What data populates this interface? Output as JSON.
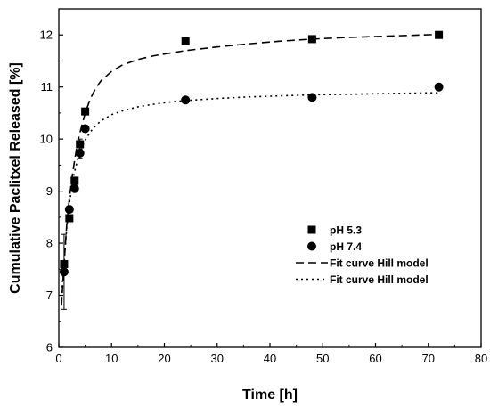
{
  "chart_data": {
    "type": "scatter",
    "title": "",
    "xlabel": "Time [h]",
    "ylabel": "Cumulative Paclitxel Released [%]",
    "xlim": [
      0,
      80
    ],
    "ylim": [
      6,
      12.5
    ],
    "xticks": [
      0,
      10,
      20,
      30,
      40,
      50,
      60,
      70,
      80
    ],
    "yticks": [
      6,
      7,
      8,
      9,
      10,
      11,
      12
    ],
    "grid": false,
    "legend_position": "center-right",
    "series": [
      {
        "name": "pH 5.3",
        "marker": "square",
        "x": [
          1,
          2,
          3,
          4,
          5,
          24,
          48,
          72
        ],
        "y": [
          7.6,
          8.48,
          9.2,
          9.9,
          10.53,
          11.88,
          11.92,
          12.0
        ],
        "error": [
          0,
          0,
          0,
          0.1,
          0,
          0,
          0,
          0
        ]
      },
      {
        "name": "pH 7.4",
        "marker": "circle",
        "x": [
          1,
          2,
          3,
          4,
          5,
          24,
          48,
          72
        ],
        "y": [
          7.45,
          8.65,
          9.05,
          9.73,
          10.2,
          10.75,
          10.8,
          11.0
        ],
        "error": [
          0.72,
          0,
          0,
          0.1,
          0,
          0,
          0,
          0.05
        ]
      }
    ],
    "fits": [
      {
        "name": "Fit curve Hill model",
        "style": "dashed",
        "x": [
          0.5,
          1,
          1.5,
          2,
          2.5,
          3,
          3.5,
          4,
          5,
          6,
          7,
          8,
          10,
          12,
          15,
          18,
          21,
          24,
          30,
          36,
          42,
          48,
          54,
          60,
          66,
          72
        ],
        "y": [
          6.8,
          7.6,
          8.35,
          8.85,
          9.25,
          9.6,
          9.9,
          10.12,
          10.5,
          10.78,
          10.98,
          11.12,
          11.3,
          11.42,
          11.53,
          11.6,
          11.65,
          11.7,
          11.77,
          11.83,
          11.88,
          11.92,
          11.95,
          11.97,
          11.99,
          12.01
        ]
      },
      {
        "name": "Fit curve Hill model",
        "style": "dotted",
        "x": [
          0.5,
          1,
          1.5,
          2,
          2.5,
          3,
          3.5,
          4,
          5,
          6,
          7,
          8,
          10,
          12,
          15,
          18,
          21,
          24,
          30,
          36,
          42,
          48,
          54,
          60,
          66,
          72
        ],
        "y": [
          7.05,
          7.6,
          8.3,
          8.75,
          9.1,
          9.38,
          9.58,
          9.74,
          9.98,
          10.14,
          10.26,
          10.35,
          10.47,
          10.54,
          10.62,
          10.67,
          10.71,
          10.74,
          10.78,
          10.81,
          10.83,
          10.85,
          10.86,
          10.87,
          10.88,
          10.89
        ]
      }
    ]
  },
  "colors": {
    "ink": "#000000",
    "background": "#ffffff"
  }
}
